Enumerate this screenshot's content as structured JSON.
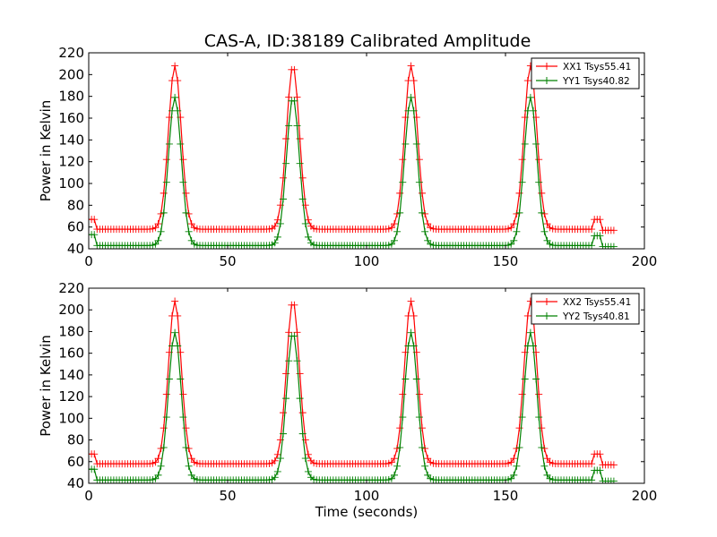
{
  "figure": {
    "title": "CAS-A, ID:38189 Calibrated Amplitude"
  },
  "chart_data": [
    {
      "type": "line",
      "title": "CAS-A, ID:38189 Calibrated Amplitude",
      "xlabel": "",
      "ylabel": "Power in Kelvin",
      "xlim": [
        0,
        200
      ],
      "ylim": [
        40,
        220
      ],
      "xticks": [
        0,
        50,
        100,
        150,
        200
      ],
      "yticks": [
        40,
        60,
        80,
        100,
        120,
        140,
        160,
        180,
        200,
        220
      ],
      "grid": false,
      "legend": "top-right",
      "marker": "+",
      "series": [
        {
          "name": "XX1 Tsys55.41",
          "color": "#ff0000",
          "baseline": 58,
          "peak": 208,
          "peaks": [
            31,
            73.5,
            116,
            159
          ],
          "start_level": 67,
          "end_bump": 67,
          "bump_at": 183,
          "x_range": [
            0,
            189
          ]
        },
        {
          "name": "YY1 Tsys40.82",
          "color": "#008000",
          "baseline": 43,
          "peak": 179,
          "peaks": [
            31,
            73.5,
            116,
            159
          ],
          "start_level": 53,
          "end_bump": 52,
          "bump_at": 183,
          "x_range": [
            0,
            189
          ]
        }
      ]
    },
    {
      "type": "line",
      "title": "",
      "xlabel": "Time (seconds)",
      "ylabel": "Power in Kelvin",
      "xlim": [
        0,
        200
      ],
      "ylim": [
        40,
        220
      ],
      "xticks": [
        0,
        50,
        100,
        150,
        200
      ],
      "yticks": [
        40,
        60,
        80,
        100,
        120,
        140,
        160,
        180,
        200,
        220
      ],
      "grid": false,
      "legend": "top-right",
      "marker": "+",
      "series": [
        {
          "name": "XX2 Tsys55.41",
          "color": "#ff0000",
          "baseline": 58,
          "peak": 208,
          "peaks": [
            31,
            73.5,
            116,
            159
          ],
          "start_level": 67,
          "end_bump": 67,
          "bump_at": 183,
          "x_range": [
            0,
            189
          ]
        },
        {
          "name": "YY2 Tsys40.81",
          "color": "#008000",
          "baseline": 43,
          "peak": 179,
          "peaks": [
            31,
            73.5,
            116,
            159
          ],
          "start_level": 53,
          "end_bump": 52,
          "bump_at": 183,
          "x_range": [
            0,
            189
          ]
        }
      ]
    }
  ]
}
